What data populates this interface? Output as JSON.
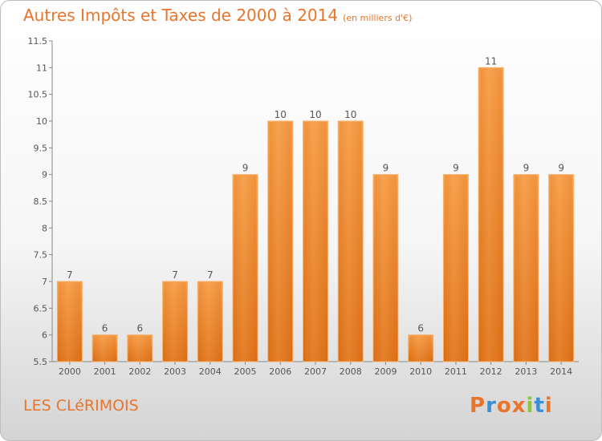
{
  "chart_data": {
    "type": "bar",
    "title": "Autres Impôts et Taxes de 2000 à 2014",
    "unit_note": "(en milliers d'€)",
    "categories": [
      "2000",
      "2001",
      "2002",
      "2003",
      "2004",
      "2005",
      "2006",
      "2007",
      "2008",
      "2009",
      "2010",
      "2011",
      "2012",
      "2013",
      "2014"
    ],
    "values": [
      7,
      6,
      6,
      7,
      7,
      9,
      10,
      10,
      10,
      9,
      6,
      9,
      11,
      9,
      9
    ],
    "data_labels": [
      "7",
      "6",
      "6",
      "7",
      "7",
      "9",
      "10",
      "10",
      "10",
      "9",
      "6",
      "9",
      "11",
      "9",
      "9"
    ],
    "ylim": [
      5.5,
      11.5
    ],
    "yticks": [
      5.5,
      6,
      6.5,
      7,
      7.5,
      8,
      8.5,
      9,
      9.5,
      10,
      10.5,
      11,
      11.5
    ],
    "ytick_labels": [
      "5.5",
      "6",
      "6.5",
      "7",
      "7.5",
      "8",
      "8.5",
      "9",
      "9.5",
      "10",
      "10.5",
      "11",
      "11.5"
    ],
    "xlabel": "",
    "ylabel": "",
    "grid": false,
    "bar_color": "#f28c2f"
  },
  "footer": {
    "commune": "LES CLéRIMOIS",
    "logo": "Proxiti"
  },
  "colors": {
    "title": "#e8752b",
    "logo_letters": [
      "#e8752b",
      "#3a8fd6",
      "#e8752b",
      "#e8752b",
      "#8cc63f",
      "#3a8fd6",
      "#e8752b"
    ]
  }
}
